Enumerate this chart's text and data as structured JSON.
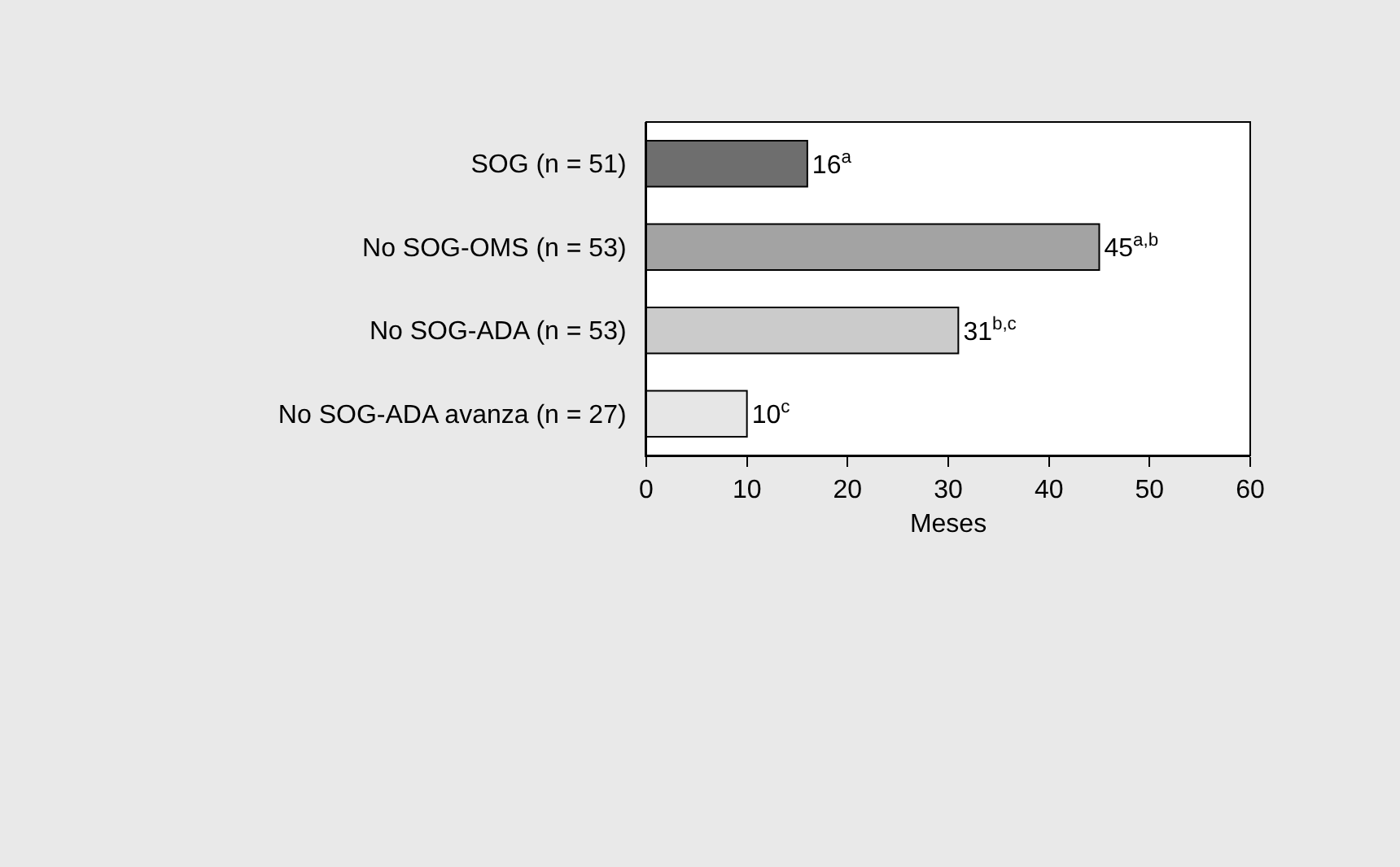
{
  "chart_data": {
    "type": "bar",
    "orientation": "horizontal",
    "xlabel": "Meses",
    "categories": [
      "SOG (n = 51)",
      "No SOG-OMS (n = 53)",
      "No SOG-ADA (n = 53)",
      "No SOG-ADA avanza (n = 27)"
    ],
    "values": [
      16,
      45,
      31,
      10
    ],
    "colors": [
      "#6e6e6e",
      "#a3a3a3",
      "#cbcbcb",
      "#e6e6e6"
    ],
    "value_labels": [
      "16$^{a}$",
      "45$^{a,b}$",
      "31$^{b,c}$",
      "10$^{c}$"
    ],
    "xlim": [
      0,
      60
    ],
    "xticks": [
      0,
      10,
      20,
      30,
      40,
      50,
      60
    ]
  }
}
